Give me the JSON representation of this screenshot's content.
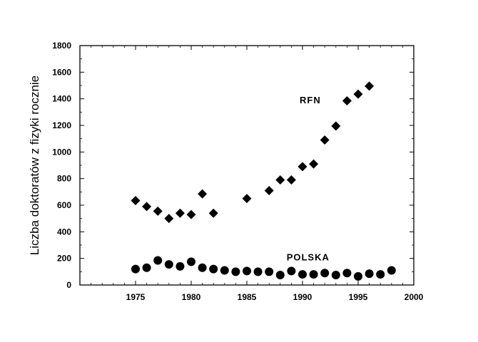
{
  "chart_data": {
    "type": "scatter",
    "title": "",
    "xlabel": "",
    "ylabel": "Liczba doktoratów z fizyki rocznie",
    "xlim": [
      1970,
      2000
    ],
    "ylim": [
      0,
      1800
    ],
    "xticks": [
      1975,
      1980,
      1985,
      1990,
      1995,
      2000
    ],
    "yticks": [
      0,
      200,
      400,
      600,
      800,
      1000,
      1200,
      1400,
      1600,
      1800
    ],
    "grid": false,
    "legend": "none",
    "annotations": [
      {
        "text": "RFN",
        "x": 1990.7,
        "y": 1365
      },
      {
        "text": "POLSKA",
        "x": 1990.5,
        "y": 185
      }
    ],
    "series": [
      {
        "name": "RFN",
        "marker": "diamond",
        "color": "#000000",
        "x": [
          1975,
          1976,
          1977,
          1978,
          1979,
          1980,
          1981,
          1982,
          1985,
          1987,
          1988,
          1989,
          1990,
          1991,
          1992,
          1993,
          1994,
          1995,
          1996
        ],
        "y": [
          635,
          590,
          555,
          500,
          540,
          530,
          685,
          540,
          650,
          710,
          790,
          790,
          890,
          910,
          1090,
          1195,
          1385,
          1435,
          1495
        ]
      },
      {
        "name": "POLSKA",
        "marker": "circle",
        "color": "#000000",
        "x": [
          1975,
          1976,
          1977,
          1978,
          1979,
          1980,
          1981,
          1982,
          1983,
          1984,
          1985,
          1986,
          1987,
          1988,
          1989,
          1990,
          1991,
          1992,
          1993,
          1994,
          1995,
          1996,
          1997,
          1998
        ],
        "y": [
          120,
          130,
          185,
          155,
          140,
          175,
          130,
          120,
          110,
          100,
          105,
          100,
          100,
          75,
          105,
          80,
          80,
          90,
          75,
          90,
          65,
          85,
          80,
          110
        ]
      }
    ]
  }
}
